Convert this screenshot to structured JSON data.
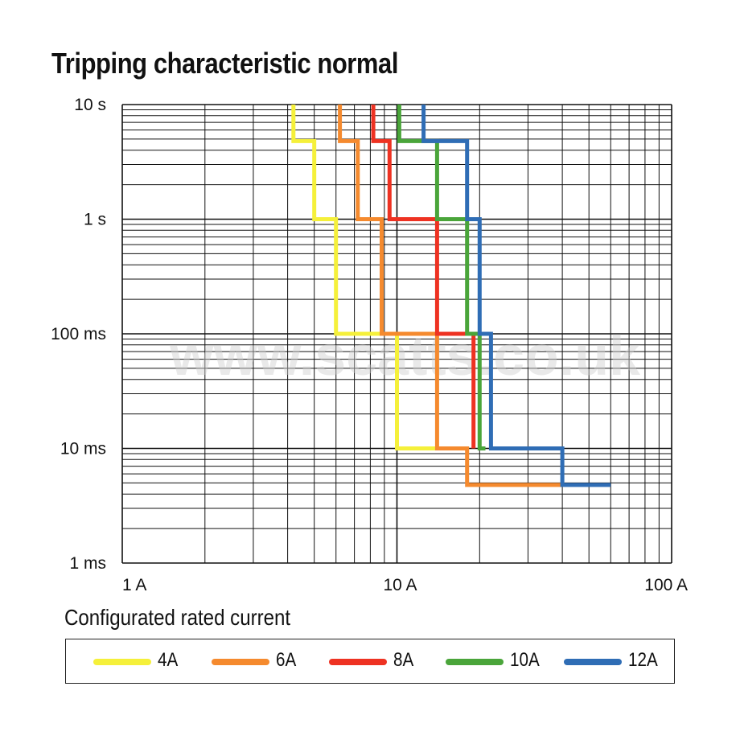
{
  "title": "Tripping characteristic normal",
  "watermark": "www.scatts.co.uk",
  "chart_data": {
    "type": "line",
    "title": "Tripping characteristic normal",
    "x_scale": "log",
    "y_scale": "log",
    "xlim": [
      1,
      100
    ],
    "ylim": [
      0.001,
      10
    ],
    "grid": true,
    "x_ticks": [
      {
        "value": 1,
        "label": "1 A"
      },
      {
        "value": 10,
        "label": "10 A"
      },
      {
        "value": 100,
        "label": "100 A"
      }
    ],
    "y_ticks": [
      {
        "value": 10,
        "label": "10 s"
      },
      {
        "value": 1,
        "label": "1 s"
      },
      {
        "value": 0.1,
        "label": "100 ms"
      },
      {
        "value": 0.01,
        "label": "10 ms"
      },
      {
        "value": 0.001,
        "label": "1 ms"
      }
    ],
    "legend_title": "Configurated rated current",
    "legend_position": "bottom",
    "series": [
      {
        "name": "4A",
        "color": "#f5f03a",
        "points": [
          [
            4.2,
            10
          ],
          [
            4.2,
            4.8
          ],
          [
            5.0,
            4.8
          ],
          [
            5.0,
            1
          ],
          [
            6.0,
            1
          ],
          [
            6.0,
            0.1
          ],
          [
            10.0,
            0.1
          ],
          [
            10.0,
            0.01
          ],
          [
            14.0,
            0.01
          ]
        ]
      },
      {
        "name": "6A",
        "color": "#f58a2e",
        "points": [
          [
            6.2,
            10
          ],
          [
            6.2,
            4.8
          ],
          [
            7.2,
            4.8
          ],
          [
            7.2,
            1
          ],
          [
            8.8,
            1
          ],
          [
            8.8,
            0.1
          ],
          [
            14.0,
            0.1
          ],
          [
            14.0,
            0.01
          ],
          [
            18.0,
            0.01
          ],
          [
            18.0,
            0.0048
          ],
          [
            40.0,
            0.0048
          ]
        ]
      },
      {
        "name": "8A",
        "color": "#ee3222",
        "points": [
          [
            8.2,
            10
          ],
          [
            8.2,
            4.8
          ],
          [
            9.4,
            4.8
          ],
          [
            9.4,
            1
          ],
          [
            14.0,
            1
          ],
          [
            14.0,
            0.1
          ],
          [
            19.0,
            0.1
          ],
          [
            19.0,
            0.01
          ]
        ]
      },
      {
        "name": "10A",
        "color": "#4aa53a",
        "points": [
          [
            10.2,
            10
          ],
          [
            10.2,
            4.8
          ],
          [
            14.0,
            4.8
          ],
          [
            14.0,
            1
          ],
          [
            18.0,
            1
          ],
          [
            18.0,
            0.1
          ],
          [
            20.0,
            0.1
          ],
          [
            20.0,
            0.01
          ],
          [
            21.0,
            0.01
          ]
        ]
      },
      {
        "name": "12A",
        "color": "#2f6db5",
        "points": [
          [
            12.5,
            10
          ],
          [
            12.5,
            4.8
          ],
          [
            18.0,
            4.8
          ],
          [
            18.0,
            1
          ],
          [
            20.0,
            1
          ],
          [
            20.0,
            0.1
          ],
          [
            22.0,
            0.1
          ],
          [
            22.0,
            0.01
          ],
          [
            40.0,
            0.01
          ],
          [
            40.0,
            0.0048
          ],
          [
            60.0,
            0.0048
          ]
        ]
      }
    ]
  }
}
